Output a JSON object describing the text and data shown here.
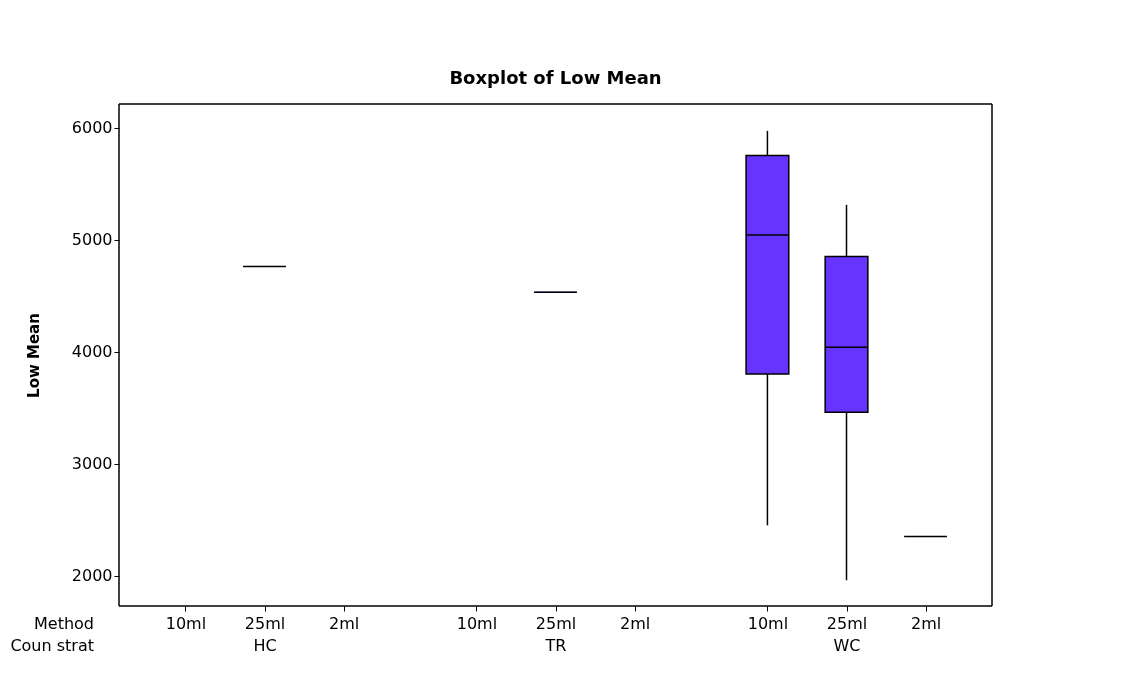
{
  "chart_data": [
    {
      "type": "box",
      "ylabel": "Low Mean",
      "xlabel": "HC",
      "categories": [
        "10ml",
        "25ml",
        "2ml"
      ],
      "color": "#6633ff",
      "boxes": [
        null,
        {
          "low": 4760,
          "q1": 4760,
          "median": 4760,
          "q3": 4760,
          "high": 4760
        },
        null
      ],
      "ylim": [
        1730,
        6210
      ],
      "yticks": [
        2000,
        3000,
        4000,
        5000,
        6000
      ],
      "annotations": [
        "Method",
        "Coun strat"
      ],
      "grid": false
    },
    {
      "type": "box",
      "title": "Boxplot of Low Mean",
      "xlabel": "TR",
      "categories": [
        "10ml",
        "25ml",
        "2ml"
      ],
      "color": "#6633ff",
      "boxes": [
        null,
        {
          "low": 4530,
          "q1": 4530,
          "median": 4530,
          "q3": 4530,
          "high": 4530
        },
        null
      ],
      "ylim": [
        1730,
        6210
      ],
      "yticks": [
        2000,
        3000,
        4000,
        5000,
        6000
      ],
      "tick_labels": "x",
      "grid": false
    },
    {
      "type": "box",
      "xlabel": "WC",
      "categories": [
        "10ml",
        "25ml",
        "2ml"
      ],
      "color": "#6633ff",
      "boxes": [
        {
          "low": 2450,
          "q1": 3800,
          "median": 5040,
          "q3": 5750,
          "high": 5970
        },
        {
          "low": 1960,
          "q1": 3460,
          "median": 4040,
          "q3": 4850,
          "high": 5310
        },
        {
          "low": 2350,
          "q1": 2350,
          "median": 2350,
          "q3": 2350,
          "high": 2350
        }
      ],
      "ylim": [
        1730,
        6210
      ],
      "yticks": [
        2000,
        3000,
        4000,
        5000,
        6000
      ],
      "tick_labels": "x",
      "grid": false
    }
  ]
}
